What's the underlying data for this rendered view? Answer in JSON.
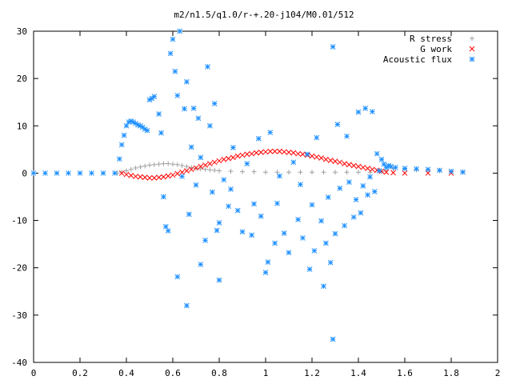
{
  "chart_data": {
    "type": "scatter",
    "title": "m2/n1.5/q1.0/r-+.20-j104/M0.01/512",
    "xlabel": "",
    "ylabel": "",
    "xlim": [
      0,
      2
    ],
    "ylim": [
      -40,
      30
    ],
    "x_ticks": [
      "0",
      "0.2",
      "0.4",
      "0.6",
      "0.8",
      "1",
      "1.2",
      "1.4",
      "1.6",
      "1.8",
      "2"
    ],
    "y_ticks": [
      "30",
      "20",
      "10",
      "0",
      "-10",
      "-20",
      "-30",
      "-40"
    ],
    "grid": false,
    "legend_position": "top-right",
    "series": [
      {
        "name": "R stress",
        "marker": "plus",
        "color": "#a0a0a0",
        "points": [
          [
            0.0,
            0
          ],
          [
            0.1,
            0
          ],
          [
            0.2,
            0
          ],
          [
            0.3,
            0
          ],
          [
            0.36,
            0
          ],
          [
            0.38,
            0.2
          ],
          [
            0.4,
            0.5
          ],
          [
            0.42,
            0.8
          ],
          [
            0.44,
            1.1
          ],
          [
            0.46,
            1.3
          ],
          [
            0.48,
            1.5
          ],
          [
            0.5,
            1.7
          ],
          [
            0.52,
            1.8
          ],
          [
            0.54,
            1.9
          ],
          [
            0.56,
            2.0
          ],
          [
            0.58,
            2.0
          ],
          [
            0.6,
            1.9
          ],
          [
            0.62,
            1.8
          ],
          [
            0.64,
            1.6
          ],
          [
            0.66,
            1.4
          ],
          [
            0.68,
            1.2
          ],
          [
            0.7,
            1.0
          ],
          [
            0.72,
            0.9
          ],
          [
            0.74,
            0.8
          ],
          [
            0.76,
            0.7
          ],
          [
            0.78,
            0.6
          ],
          [
            0.8,
            0.5
          ],
          [
            0.85,
            0.4
          ],
          [
            0.9,
            0.3
          ],
          [
            0.95,
            0.3
          ],
          [
            1.0,
            0.2
          ],
          [
            1.05,
            0.2
          ],
          [
            1.1,
            0.2
          ],
          [
            1.15,
            0.2
          ],
          [
            1.2,
            0.2
          ],
          [
            1.25,
            0.2
          ],
          [
            1.3,
            0.2
          ],
          [
            1.35,
            0.2
          ],
          [
            1.4,
            0.2
          ],
          [
            1.45,
            0.2
          ],
          [
            1.5,
            0.3
          ],
          [
            1.52,
            0.6
          ],
          [
            1.55,
            0.9
          ],
          [
            1.6,
            0.8
          ],
          [
            1.65,
            0.7
          ],
          [
            1.7,
            0.6
          ],
          [
            1.75,
            0.5
          ],
          [
            1.8,
            0.4
          ],
          [
            1.85,
            0.3
          ]
        ]
      },
      {
        "name": "G work",
        "marker": "cross",
        "color": "#ff0000",
        "points": [
          [
            0.38,
            0
          ],
          [
            0.4,
            -0.3
          ],
          [
            0.42,
            -0.5
          ],
          [
            0.44,
            -0.7
          ],
          [
            0.46,
            -0.8
          ],
          [
            0.48,
            -0.9
          ],
          [
            0.5,
            -1.0
          ],
          [
            0.52,
            -1.0
          ],
          [
            0.54,
            -0.9
          ],
          [
            0.56,
            -0.8
          ],
          [
            0.58,
            -0.6
          ],
          [
            0.6,
            -0.4
          ],
          [
            0.62,
            -0.1
          ],
          [
            0.64,
            0.2
          ],
          [
            0.66,
            0.5
          ],
          [
            0.68,
            0.8
          ],
          [
            0.7,
            1.1
          ],
          [
            0.72,
            1.4
          ],
          [
            0.74,
            1.7
          ],
          [
            0.76,
            2.0
          ],
          [
            0.78,
            2.3
          ],
          [
            0.8,
            2.6
          ],
          [
            0.82,
            2.9
          ],
          [
            0.84,
            3.1
          ],
          [
            0.86,
            3.3
          ],
          [
            0.88,
            3.6
          ],
          [
            0.9,
            3.8
          ],
          [
            0.92,
            4.0
          ],
          [
            0.94,
            4.1
          ],
          [
            0.96,
            4.3
          ],
          [
            0.98,
            4.4
          ],
          [
            1.0,
            4.5
          ],
          [
            1.02,
            4.6
          ],
          [
            1.04,
            4.6
          ],
          [
            1.06,
            4.6
          ],
          [
            1.08,
            4.5
          ],
          [
            1.1,
            4.4
          ],
          [
            1.12,
            4.3
          ],
          [
            1.14,
            4.1
          ],
          [
            1.16,
            4.0
          ],
          [
            1.18,
            3.8
          ],
          [
            1.2,
            3.6
          ],
          [
            1.22,
            3.4
          ],
          [
            1.24,
            3.2
          ],
          [
            1.26,
            2.9
          ],
          [
            1.28,
            2.7
          ],
          [
            1.3,
            2.5
          ],
          [
            1.32,
            2.3
          ],
          [
            1.34,
            2.0
          ],
          [
            1.36,
            1.8
          ],
          [
            1.38,
            1.6
          ],
          [
            1.4,
            1.4
          ],
          [
            1.42,
            1.2
          ],
          [
            1.44,
            1.0
          ],
          [
            1.46,
            0.8
          ],
          [
            1.48,
            0.6
          ],
          [
            1.5,
            0.4
          ],
          [
            1.52,
            0.2
          ],
          [
            1.55,
            0.1
          ],
          [
            1.6,
            0
          ],
          [
            1.7,
            0
          ],
          [
            1.8,
            0
          ]
        ]
      },
      {
        "name": "Acoustic flux",
        "marker": "star",
        "color": "#1e90ff",
        "points": [
          [
            0.0,
            0
          ],
          [
            0.05,
            0
          ],
          [
            0.1,
            0
          ],
          [
            0.15,
            0
          ],
          [
            0.2,
            0
          ],
          [
            0.25,
            0
          ],
          [
            0.3,
            0
          ],
          [
            0.35,
            0
          ],
          [
            0.37,
            3
          ],
          [
            0.38,
            6
          ],
          [
            0.39,
            8
          ],
          [
            0.4,
            10
          ],
          [
            0.41,
            10.8
          ],
          [
            0.42,
            11
          ],
          [
            0.43,
            10.8
          ],
          [
            0.44,
            10.5
          ],
          [
            0.45,
            10.2
          ],
          [
            0.46,
            10
          ],
          [
            0.47,
            9.7
          ],
          [
            0.48,
            9.3
          ],
          [
            0.49,
            9
          ],
          [
            0.5,
            15.5
          ],
          [
            0.51,
            15.8
          ],
          [
            0.52,
            16.2
          ],
          [
            0.54,
            12.5
          ],
          [
            0.55,
            8.5
          ],
          [
            0.56,
            -5
          ],
          [
            0.57,
            -11.3
          ],
          [
            0.58,
            -12.2
          ],
          [
            0.59,
            25.3
          ],
          [
            0.6,
            28.3
          ],
          [
            0.61,
            21.5
          ],
          [
            0.62,
            16.4
          ],
          [
            0.63,
            30
          ],
          [
            0.62,
            -21.9
          ],
          [
            0.64,
            -0.7
          ],
          [
            0.65,
            13.6
          ],
          [
            0.66,
            -28
          ],
          [
            0.66,
            19.3
          ],
          [
            0.67,
            -8.7
          ],
          [
            0.68,
            5.5
          ],
          [
            0.69,
            13.7
          ],
          [
            0.7,
            -2.5
          ],
          [
            0.71,
            11.6
          ],
          [
            0.72,
            -19.3
          ],
          [
            0.72,
            3.3
          ],
          [
            0.74,
            -14.2
          ],
          [
            0.75,
            22.5
          ],
          [
            0.76,
            10
          ],
          [
            0.77,
            -4
          ],
          [
            0.78,
            14.7
          ],
          [
            0.79,
            -12.1
          ],
          [
            0.8,
            -22.6
          ],
          [
            0.8,
            -10.5
          ],
          [
            0.82,
            -1.4
          ],
          [
            0.84,
            -7
          ],
          [
            0.85,
            -3.4
          ],
          [
            0.86,
            5.4
          ],
          [
            0.88,
            -7.9
          ],
          [
            0.9,
            -12.4
          ],
          [
            0.92,
            2
          ],
          [
            0.94,
            -13.1
          ],
          [
            0.95,
            -6.5
          ],
          [
            0.97,
            7.3
          ],
          [
            0.98,
            -9.1
          ],
          [
            1.0,
            -21
          ],
          [
            1.01,
            -18.8
          ],
          [
            1.02,
            8.6
          ],
          [
            1.04,
            -14.8
          ],
          [
            1.05,
            -6.4
          ],
          [
            1.06,
            -0.6
          ],
          [
            1.08,
            -12.7
          ],
          [
            1.1,
            -16.8
          ],
          [
            1.12,
            2.3
          ],
          [
            1.14,
            -9.8
          ],
          [
            1.15,
            -2.4
          ],
          [
            1.16,
            -13.7
          ],
          [
            1.18,
            4
          ],
          [
            1.19,
            -20.3
          ],
          [
            1.2,
            -6.7
          ],
          [
            1.21,
            -16.4
          ],
          [
            1.22,
            7.5
          ],
          [
            1.24,
            -10.1
          ],
          [
            1.25,
            -23.9
          ],
          [
            1.26,
            -14.8
          ],
          [
            1.27,
            -5.1
          ],
          [
            1.28,
            -18.9
          ],
          [
            1.29,
            26.7
          ],
          [
            1.29,
            -35.1
          ],
          [
            1.3,
            -12.8
          ],
          [
            1.31,
            10.3
          ],
          [
            1.32,
            -3.2
          ],
          [
            1.34,
            -11.1
          ],
          [
            1.35,
            7.8
          ],
          [
            1.36,
            -1.9
          ],
          [
            1.38,
            -9.3
          ],
          [
            1.39,
            -5.6
          ],
          [
            1.4,
            12.9
          ],
          [
            1.41,
            -8.4
          ],
          [
            1.42,
            -2.7
          ],
          [
            1.43,
            13.7
          ],
          [
            1.44,
            -4.6
          ],
          [
            1.45,
            -0.8
          ],
          [
            1.46,
            13
          ],
          [
            1.47,
            -3.9
          ],
          [
            1.48,
            4.1
          ],
          [
            1.49,
            0.5
          ],
          [
            1.5,
            2.9
          ],
          [
            1.51,
            1.9
          ],
          [
            1.52,
            1.2
          ],
          [
            1.53,
            1.6
          ],
          [
            1.54,
            1.4
          ],
          [
            1.56,
            1.2
          ],
          [
            1.6,
            1.0
          ],
          [
            1.65,
            0.9
          ],
          [
            1.7,
            0.8
          ],
          [
            1.75,
            0.6
          ],
          [
            1.8,
            0.4
          ],
          [
            1.85,
            0.2
          ]
        ]
      }
    ]
  }
}
